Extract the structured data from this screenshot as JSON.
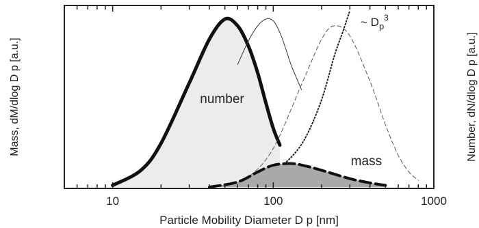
{
  "chart_data": {
    "type": "line",
    "title": "",
    "xlabel": "Particle Mobility Diameter D p [nm]",
    "ylabel_left": "Mass, dM/dlog D p [a.u.]",
    "ylabel_right": "Number, dN/dlog D p [a.u.]",
    "xscale": "log",
    "xlim": [
      5,
      1000
    ],
    "ylim": [
      0,
      1
    ],
    "x_ticks": [
      10,
      100,
      1000
    ],
    "x_tick_labels": [
      "10",
      "100",
      "1000"
    ],
    "grid": false,
    "series": [
      {
        "name": "number",
        "style": "thick solid, light gray fill",
        "x": [
          10,
          15,
          20,
          30,
          40,
          50,
          60,
          70,
          80,
          90,
          100,
          110
        ],
        "y": [
          0.01,
          0.1,
          0.26,
          0.62,
          0.88,
          1.0,
          0.96,
          0.84,
          0.68,
          0.5,
          0.35,
          0.25
        ]
      },
      {
        "style": "thin solid",
        "x": [
          60,
          70,
          80,
          90,
          100,
          110,
          120,
          130,
          150
        ],
        "y": [
          0.73,
          0.87,
          0.96,
          1.0,
          0.99,
          0.92,
          0.82,
          0.72,
          0.58
        ]
      },
      {
        "style": "thin dashed",
        "x": [
          50,
          70,
          100,
          150,
          200,
          240,
          300,
          400,
          500,
          600,
          700,
          800
        ],
        "y": [
          0.01,
          0.06,
          0.23,
          0.61,
          0.88,
          0.96,
          0.9,
          0.63,
          0.37,
          0.19,
          0.09,
          0.04
        ]
      },
      {
        "name": "~ Dp³",
        "style": "dotted",
        "x": [
          40,
          60,
          80,
          100,
          130,
          160,
          200,
          240,
          270,
          300
        ],
        "y": [
          0.0,
          0.02,
          0.05,
          0.09,
          0.18,
          0.3,
          0.52,
          0.78,
          0.92,
          1.05
        ]
      },
      {
        "name": "mass",
        "style": "thick dashed, dark gray fill",
        "x": [
          40,
          60,
          80,
          100,
          130,
          160,
          200,
          300,
          400,
          500
        ],
        "y": [
          0.0,
          0.03,
          0.09,
          0.13,
          0.14,
          0.125,
          0.1,
          0.05,
          0.025,
          0.01
        ]
      }
    ],
    "annotations": [
      {
        "text": "number",
        "x": 48,
        "y": 0.5
      },
      {
        "text": "mass",
        "x": 380,
        "y": 0.13
      },
      {
        "text_main": "~ D",
        "text_sub": "p",
        "text_sup": "3",
        "x": 350,
        "y": 0.96
      }
    ]
  }
}
